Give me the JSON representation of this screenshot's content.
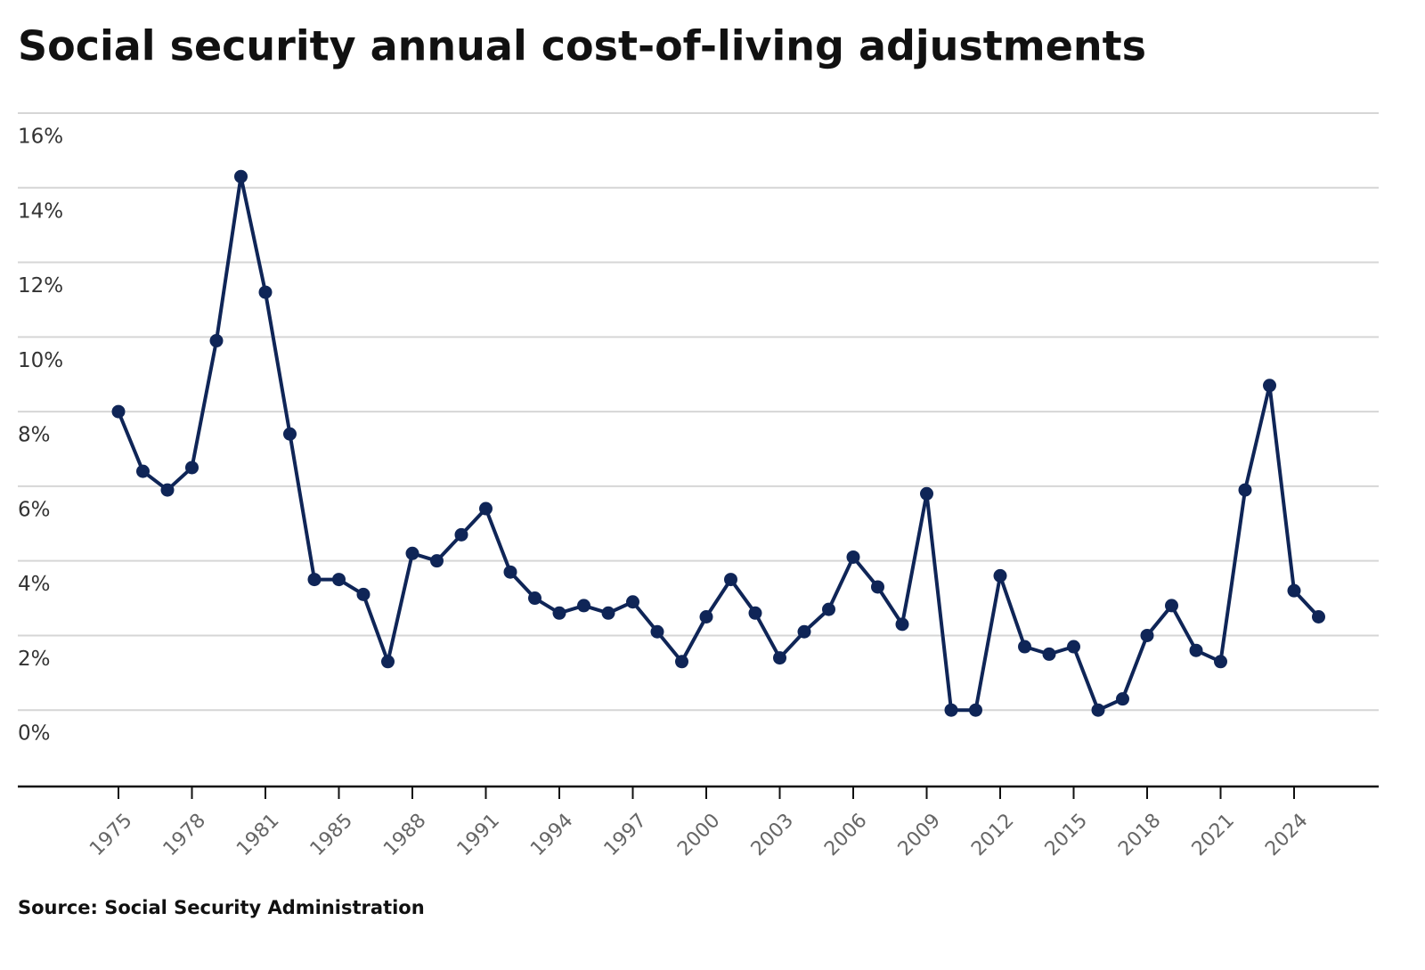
{
  "chart_data": {
    "type": "line",
    "title": "Social security annual cost-of-living adjustments",
    "source": "Source: Social Security Administration",
    "categories": [
      "1975",
      null,
      null,
      "1978",
      null,
      null,
      "1981",
      null,
      null,
      "1985",
      null,
      null,
      "1988",
      null,
      null,
      "1991",
      null,
      null,
      "1994",
      null,
      null,
      "1997",
      null,
      null,
      "2000",
      null,
      null,
      "2003",
      null,
      null,
      "2006",
      null,
      null,
      "2009",
      null,
      null,
      "2012",
      null,
      null,
      "2015",
      null,
      null,
      "2018",
      null,
      null,
      "2021",
      null,
      null,
      "2024",
      null
    ],
    "values": [
      8.0,
      6.4,
      5.9,
      6.5,
      9.9,
      14.3,
      11.2,
      7.4,
      3.5,
      3.5,
      3.1,
      1.3,
      4.2,
      4.0,
      4.7,
      5.4,
      3.7,
      3.0,
      2.6,
      2.8,
      2.6,
      2.9,
      2.1,
      1.3,
      2.5,
      3.5,
      2.6,
      1.4,
      2.1,
      2.7,
      4.1,
      3.3,
      2.3,
      5.8,
      0.0,
      0.0,
      3.6,
      1.7,
      1.5,
      1.7,
      0.0,
      0.3,
      2.0,
      2.8,
      1.6,
      1.3,
      5.9,
      8.7,
      3.2,
      2.5
    ],
    "color": "#0f2557",
    "ylim": [
      -2,
      16
    ],
    "yticks": [
      {
        "value": 0,
        "label": "0%"
      },
      {
        "value": 2,
        "label": "2%"
      },
      {
        "value": 4,
        "label": "4%"
      },
      {
        "value": 6,
        "label": "6%"
      },
      {
        "value": 8,
        "label": "8%"
      },
      {
        "value": 10,
        "label": "10%"
      },
      {
        "value": 12,
        "label": "12%"
      },
      {
        "value": 14,
        "label": "14%"
      },
      {
        "value": 16,
        "label": "16%"
      }
    ],
    "grid": true
  }
}
